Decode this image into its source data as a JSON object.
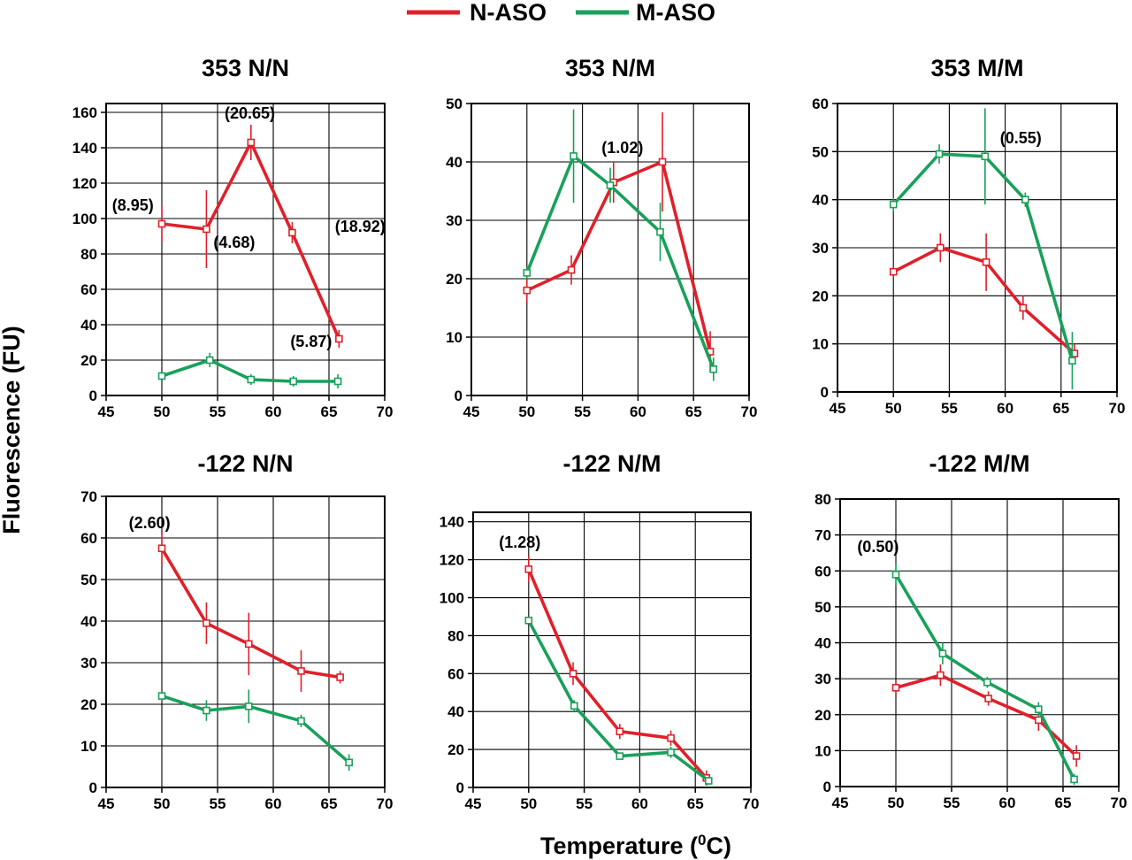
{
  "legend": {
    "items": [
      {
        "label": "N-ASO",
        "color": "#e0202a"
      },
      {
        "label": "M-ASO",
        "color": "#19a05a"
      }
    ]
  },
  "axes": {
    "xlabel_main": "Temperature (",
    "xlabel_sup": "0",
    "xlabel_end": "C)",
    "ylabel": "Fluorescence (FU)"
  },
  "chart_data": [
    {
      "type": "line",
      "title": "353 N/N",
      "xlim": [
        45,
        70
      ],
      "xticks": [
        45,
        50,
        55,
        60,
        65,
        70
      ],
      "ylim": [
        0,
        165
      ],
      "yticks": [
        0,
        20,
        40,
        60,
        80,
        100,
        120,
        140,
        160
      ],
      "series": [
        {
          "name": "N-ASO",
          "color": "#e0202a",
          "points": [
            {
              "x": 50,
              "y": 97,
              "err": 10
            },
            {
              "x": 54,
              "y": 94,
              "err": 22
            },
            {
              "x": 58,
              "y": 143,
              "err": 10
            },
            {
              "x": 61.7,
              "y": 92,
              "err": 6
            },
            {
              "x": 65.9,
              "y": 32,
              "err": 5
            }
          ]
        },
        {
          "name": "M-ASO",
          "color": "#19a05a",
          "points": [
            {
              "x": 50,
              "y": 11,
              "err": 2
            },
            {
              "x": 54.3,
              "y": 20,
              "err": 4
            },
            {
              "x": 58,
              "y": 9,
              "err": 3
            },
            {
              "x": 61.8,
              "y": 8,
              "err": 3
            },
            {
              "x": 65.8,
              "y": 8,
              "err": 4
            }
          ]
        }
      ],
      "annotations": [
        {
          "text": "(20.65)",
          "x": 57.9,
          "y": 159
        },
        {
          "text": "(8.95)",
          "x": 47.4,
          "y": 107
        },
        {
          "text": "(4.68)",
          "x": 56.5,
          "y": 86
        },
        {
          "text": "(18.92)",
          "x": 67.8,
          "y": 95
        },
        {
          "text": "(5.87)",
          "x": 63.4,
          "y": 30
        }
      ]
    },
    {
      "type": "line",
      "title": "353 N/M",
      "xlim": [
        45,
        70
      ],
      "xticks": [
        45,
        50,
        55,
        60,
        65,
        70
      ],
      "ylim": [
        0,
        50
      ],
      "yticks": [
        0,
        10,
        20,
        30,
        40,
        50
      ],
      "series": [
        {
          "name": "N-ASO",
          "color": "#e0202a",
          "points": [
            {
              "x": 50,
              "y": 18,
              "err": 2
            },
            {
              "x": 54,
              "y": 21.5,
              "err": 2.5
            },
            {
              "x": 57.8,
              "y": 36.5,
              "err": 3.5
            },
            {
              "x": 62.2,
              "y": 40,
              "err": 8.5
            },
            {
              "x": 66.5,
              "y": 7.5,
              "err": 3.5
            }
          ]
        },
        {
          "name": "M-ASO",
          "color": "#19a05a",
          "points": [
            {
              "x": 50,
              "y": 21,
              "err": 1
            },
            {
              "x": 54.2,
              "y": 41,
              "err": 8
            },
            {
              "x": 57.5,
              "y": 36,
              "err": 3
            },
            {
              "x": 62,
              "y": 28,
              "err": 5
            },
            {
              "x": 66.8,
              "y": 4.5,
              "err": 2
            }
          ]
        }
      ],
      "annotations": [
        {
          "text": "(1.02)",
          "x": 58.6,
          "y": 42.2
        }
      ]
    },
    {
      "type": "line",
      "title": "353 M/M",
      "xlim": [
        45,
        70
      ],
      "xticks": [
        45,
        50,
        55,
        60,
        65,
        70
      ],
      "ylim": [
        0,
        60
      ],
      "yticks": [
        0,
        10,
        20,
        30,
        40,
        50,
        60
      ],
      "series": [
        {
          "name": "N-ASO",
          "color": "#e0202a",
          "points": [
            {
              "x": 50,
              "y": 25,
              "err": 1
            },
            {
              "x": 54.2,
              "y": 30,
              "err": 3
            },
            {
              "x": 58.3,
              "y": 27,
              "err": 6
            },
            {
              "x": 61.6,
              "y": 17.5,
              "err": 2.5
            },
            {
              "x": 66.2,
              "y": 8,
              "err": 2
            }
          ]
        },
        {
          "name": "M-ASO",
          "color": "#19a05a",
          "points": [
            {
              "x": 50,
              "y": 39,
              "err": 1.5
            },
            {
              "x": 54.1,
              "y": 49.5,
              "err": 2
            },
            {
              "x": 58.2,
              "y": 49,
              "err": 10
            },
            {
              "x": 61.8,
              "y": 40,
              "err": 1.5
            },
            {
              "x": 66,
              "y": 6.5,
              "err": 6
            }
          ]
        }
      ],
      "annotations": [
        {
          "text": "(0.55)",
          "x": 61.4,
          "y": 52.6
        }
      ]
    },
    {
      "type": "line",
      "title": "-122 N/N",
      "xlim": [
        45,
        70
      ],
      "xticks": [
        45,
        50,
        55,
        60,
        65,
        70
      ],
      "ylim": [
        0,
        70
      ],
      "yticks": [
        0,
        10,
        20,
        30,
        40,
        50,
        60,
        70
      ],
      "series": [
        {
          "name": "N-ASO",
          "color": "#e0202a",
          "points": [
            {
              "x": 50,
              "y": 57.5,
              "err": 4
            },
            {
              "x": 54,
              "y": 39.5,
              "err": 5
            },
            {
              "x": 57.8,
              "y": 34.5,
              "err": 7.5
            },
            {
              "x": 62.5,
              "y": 28,
              "err": 5
            },
            {
              "x": 66,
              "y": 26.5,
              "err": 1.5
            }
          ]
        },
        {
          "name": "M-ASO",
          "color": "#19a05a",
          "points": [
            {
              "x": 50,
              "y": 22,
              "err": 1
            },
            {
              "x": 54,
              "y": 18.5,
              "err": 2.5
            },
            {
              "x": 57.8,
              "y": 19.5,
              "err": 4
            },
            {
              "x": 62.5,
              "y": 16,
              "err": 1.5
            },
            {
              "x": 66.8,
              "y": 6,
              "err": 2
            }
          ]
        }
      ],
      "annotations": [
        {
          "text": "(2.60)",
          "x": 48.9,
          "y": 63.4
        }
      ]
    },
    {
      "type": "line",
      "title": "-122 N/M",
      "xlim": [
        45,
        70
      ],
      "xticks": [
        45,
        50,
        55,
        60,
        65,
        70
      ],
      "ylim": [
        0,
        145
      ],
      "yticks": [
        0,
        20,
        40,
        60,
        80,
        100,
        120,
        140
      ],
      "series": [
        {
          "name": "N-ASO",
          "color": "#e0202a",
          "points": [
            {
              "x": 50,
              "y": 115,
              "err": 7
            },
            {
              "x": 54,
              "y": 60,
              "err": 6
            },
            {
              "x": 58.2,
              "y": 29.5,
              "err": 4
            },
            {
              "x": 62.8,
              "y": 26,
              "err": 4
            },
            {
              "x": 66,
              "y": 5,
              "err": 4
            }
          ]
        },
        {
          "name": "M-ASO",
          "color": "#19a05a",
          "points": [
            {
              "x": 50,
              "y": 88,
              "err": 1
            },
            {
              "x": 54.1,
              "y": 43,
              "err": 3
            },
            {
              "x": 58.2,
              "y": 16.5,
              "err": 1.5
            },
            {
              "x": 62.8,
              "y": 18.5,
              "err": 3
            },
            {
              "x": 66.2,
              "y": 3.5,
              "err": 2
            }
          ]
        }
      ],
      "annotations": [
        {
          "text": "(1.28)",
          "x": 49.2,
          "y": 128.5
        }
      ]
    },
    {
      "type": "line",
      "title": "-122 M/M",
      "xlim": [
        45,
        70
      ],
      "xticks": [
        45,
        50,
        55,
        60,
        65,
        70
      ],
      "ylim": [
        0,
        80
      ],
      "yticks": [
        0,
        10,
        20,
        30,
        40,
        50,
        60,
        70,
        80
      ],
      "series": [
        {
          "name": "N-ASO",
          "color": "#e0202a",
          "points": [
            {
              "x": 50,
              "y": 27.5,
              "err": 2
            },
            {
              "x": 54,
              "y": 31,
              "err": 3
            },
            {
              "x": 58.3,
              "y": 24.5,
              "err": 2
            },
            {
              "x": 62.8,
              "y": 18.5,
              "err": 3
            },
            {
              "x": 66.2,
              "y": 8.5,
              "err": 3
            }
          ]
        },
        {
          "name": "M-ASO",
          "color": "#19a05a",
          "points": [
            {
              "x": 50,
              "y": 59,
              "err": 3
            },
            {
              "x": 54.2,
              "y": 37,
              "err": 3
            },
            {
              "x": 58.2,
              "y": 29,
              "err": 1.5
            },
            {
              "x": 62.8,
              "y": 21.5,
              "err": 2
            },
            {
              "x": 66,
              "y": 2,
              "err": 1.5
            }
          ]
        }
      ],
      "annotations": [
        {
          "text": "(0.50)",
          "x": 48.4,
          "y": 66.4
        }
      ]
    }
  ]
}
